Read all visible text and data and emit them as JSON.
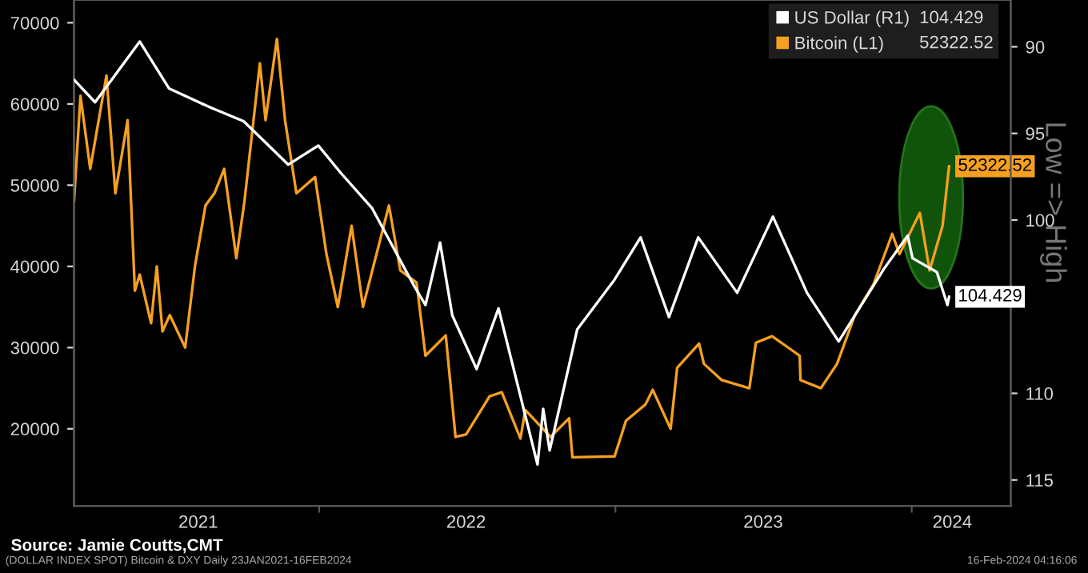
{
  "chart_data": {
    "type": "line",
    "ylabel": null,
    "y2label": "Low => High",
    "legend": "top right",
    "grid": false,
    "xlim": [
      "2021-03-05",
      "2024-05-02"
    ],
    "xticks": [
      {
        "value": "2021-08-05",
        "label": "2021"
      },
      {
        "value": "2022-01-01",
        "label": null
      },
      {
        "value": "2022-07-01",
        "label": "2022"
      },
      {
        "value": "2023-01-01",
        "label": null
      },
      {
        "value": "2023-07-02",
        "label": "2023"
      },
      {
        "value": "2024-01-01",
        "label": null
      },
      {
        "value": "2024-02-20",
        "label": "2024"
      }
    ],
    "ylim": [
      10500,
      72800
    ],
    "yticks": [
      20000,
      30000,
      40000,
      50000,
      60000,
      70000
    ],
    "y2lim": [
      116.5,
      87.3
    ],
    "y2ticks": [
      90,
      95,
      100,
      110,
      115
    ],
    "series": [
      {
        "name": "US Dollar (R1)",
        "color": "#ffffff",
        "axis": "y2",
        "x": [
          "2021-03-05",
          "2021-03-31",
          "2021-05-25",
          "2021-06-30",
          "2021-08-20",
          "2021-09-30",
          "2021-11-24",
          "2021-12-31",
          "2022-01-28",
          "2022-03-07",
          "2022-04-28",
          "2022-05-12",
          "2022-05-30",
          "2022-06-14",
          "2022-07-14",
          "2022-08-10",
          "2022-09-27",
          "2022-10-04",
          "2022-10-12",
          "2022-11-15",
          "2022-12-30",
          "2023-02-01",
          "2023-03-08",
          "2023-04-13",
          "2023-05-31",
          "2023-07-14",
          "2023-08-25",
          "2023-10-03",
          "2023-11-28",
          "2023-12-27",
          "2024-01-02",
          "2024-02-01",
          "2024-02-14",
          "2024-02-16"
        ],
        "values": [
          91.9,
          93.2,
          89.7,
          92.4,
          93.5,
          94.3,
          96.8,
          95.7,
          97.3,
          99.3,
          103.8,
          104.9,
          101.3,
          105.5,
          108.6,
          105.1,
          114.1,
          110.9,
          113.3,
          106.3,
          103.5,
          101.0,
          105.6,
          101.0,
          104.2,
          99.8,
          104.2,
          107.0,
          102.8,
          100.9,
          102.2,
          103.0,
          104.9,
          104.429
        ],
        "value_labels": [
          null,
          null,
          null,
          null,
          null,
          null,
          null,
          null,
          null,
          null,
          null,
          null,
          null,
          null,
          null,
          null,
          null,
          null,
          null,
          null,
          null,
          null,
          null,
          null,
          null,
          null,
          null,
          null,
          null,
          null,
          null,
          null,
          null,
          "104.429"
        ]
      },
      {
        "name": "Bitcoin (L1)",
        "color": "#f5a020",
        "x": [
          "2021-03-05",
          "2021-03-13",
          "2021-03-25",
          "2021-04-14",
          "2021-04-25",
          "2021-05-10",
          "2021-05-19",
          "2021-05-25",
          "2021-06-08",
          "2021-06-15",
          "2021-06-22",
          "2021-07-01",
          "2021-07-20",
          "2021-08-01",
          "2021-08-14",
          "2021-08-25",
          "2021-09-06",
          "2021-09-21",
          "2021-10-01",
          "2021-10-20",
          "2021-10-27",
          "2021-11-10",
          "2021-11-20",
          "2021-12-04",
          "2021-12-27",
          "2022-01-10",
          "2022-01-24",
          "2022-02-10",
          "2022-02-24",
          "2022-03-28",
          "2022-04-11",
          "2022-05-01",
          "2022-05-12",
          "2022-06-06",
          "2022-06-18",
          "2022-07-01",
          "2022-07-30",
          "2022-08-14",
          "2022-09-06",
          "2022-09-12",
          "2022-10-13",
          "2022-11-05",
          "2022-11-09",
          "2022-12-31",
          "2023-01-14",
          "2023-02-07",
          "2023-02-16",
          "2023-03-10",
          "2023-03-18",
          "2023-04-14",
          "2023-04-20",
          "2023-05-12",
          "2023-06-15",
          "2023-06-23",
          "2023-07-13",
          "2023-08-16",
          "2023-08-17",
          "2023-09-11",
          "2023-10-01",
          "2023-10-23",
          "2023-11-15",
          "2023-12-08",
          "2023-12-17",
          "2024-01-11",
          "2024-01-23",
          "2024-02-08",
          "2024-02-16"
        ],
        "values": [
          48000,
          61000,
          52000,
          63500,
          49000,
          58000,
          37000,
          39000,
          33000,
          40000,
          32000,
          34000,
          30000,
          40000,
          47500,
          49000,
          52000,
          41000,
          48000,
          65000,
          58000,
          68000,
          58000,
          49000,
          51000,
          41500,
          35000,
          45000,
          35000,
          47500,
          39500,
          38000,
          29000,
          31500,
          19000,
          19300,
          24000,
          24500,
          18800,
          22300,
          19000,
          21300,
          16500,
          16600,
          21000,
          23000,
          24800,
          20000,
          27500,
          30500,
          28000,
          26000,
          25000,
          30600,
          31400,
          29000,
          26000,
          25000,
          28000,
          34000,
          37800,
          44000,
          41500,
          46600,
          39500,
          45000,
          52322.52
        ],
        "value_labels": [
          null,
          null,
          null,
          null,
          null,
          null,
          null,
          null,
          null,
          null,
          null,
          null,
          null,
          null,
          null,
          null,
          null,
          null,
          null,
          null,
          null,
          null,
          null,
          null,
          null,
          null,
          null,
          null,
          null,
          null,
          null,
          null,
          null,
          null,
          null,
          null,
          null,
          null,
          null,
          null,
          null,
          null,
          null,
          null,
          null,
          null,
          null,
          null,
          null,
          null,
          null,
          null,
          null,
          null,
          null,
          null,
          null,
          null,
          null,
          null,
          null,
          null,
          null,
          null,
          null,
          null,
          "52322.52"
        ]
      }
    ],
    "annotations": [
      "Source: Jamie Coutts,CMT",
      "(DOLLAR INDEX SPOT) Bitcoin & DXY Daily 23JAN2021-16FEB2024",
      "16-Feb-2024 04:16:06"
    ]
  }
}
